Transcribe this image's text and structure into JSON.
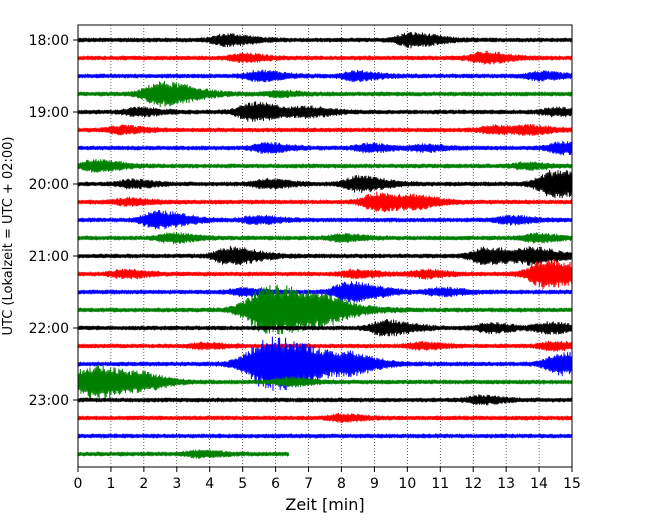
{
  "chart_data": {
    "type": "line",
    "title": "",
    "xlabel": "Zeit  [min]",
    "ylabel": "UTC (Lokalzeit = UTC + 02:00)",
    "xlim": [
      0,
      15
    ],
    "x_ticks": [
      "0",
      "1",
      "2",
      "3",
      "4",
      "5",
      "6",
      "7",
      "8",
      "9",
      "10",
      "11",
      "12",
      "13",
      "14",
      "15"
    ],
    "y_ticks": [
      "18:00",
      "19:00",
      "20:00",
      "21:00",
      "22:00",
      "23:00"
    ],
    "grid": "vertical dotted",
    "line_colors": [
      "#000000",
      "#ff0000",
      "#0000ff",
      "#008000"
    ],
    "traces": [
      {
        "start": "18:00",
        "color": "#000000",
        "end_min": 15,
        "events": [
          [
            4.5,
            0.45
          ],
          [
            10.1,
            0.55
          ]
        ]
      },
      {
        "start": "18:15",
        "color": "#ff0000",
        "end_min": 15,
        "events": [
          [
            5.0,
            0.3
          ],
          [
            12.3,
            0.45
          ]
        ]
      },
      {
        "start": "18:30",
        "color": "#0000ff",
        "end_min": 15,
        "events": [
          [
            5.5,
            0.4
          ],
          [
            8.4,
            0.35
          ],
          [
            14.0,
            0.3
          ]
        ]
      },
      {
        "start": "18:45",
        "color": "#008000",
        "end_min": 15,
        "events": [
          [
            2.5,
            1.0
          ],
          [
            6.1,
            0.2
          ]
        ]
      },
      {
        "start": "19:00",
        "color": "#000000",
        "end_min": 15,
        "events": [
          [
            1.8,
            0.3
          ],
          [
            5.3,
            0.75
          ],
          [
            7.0,
            0.35
          ],
          [
            14.5,
            0.3
          ]
        ]
      },
      {
        "start": "19:15",
        "color": "#ff0000",
        "end_min": 15,
        "events": [
          [
            1.3,
            0.3
          ],
          [
            12.6,
            0.3
          ],
          [
            13.7,
            0.3
          ]
        ]
      },
      {
        "start": "19:30",
        "color": "#0000ff",
        "end_min": 15,
        "events": [
          [
            5.7,
            0.35
          ],
          [
            8.8,
            0.3
          ],
          [
            10.5,
            0.25
          ],
          [
            14.7,
            0.45
          ]
        ]
      },
      {
        "start": "19:45",
        "color": "#008000",
        "end_min": 15,
        "events": [
          [
            0.5,
            0.45
          ],
          [
            13.6,
            0.25
          ]
        ]
      },
      {
        "start": "20:00",
        "color": "#000000",
        "end_min": 15,
        "events": [
          [
            1.6,
            0.3
          ],
          [
            5.7,
            0.35
          ],
          [
            8.5,
            0.6
          ],
          [
            14.5,
            1.2
          ]
        ]
      },
      {
        "start": "20:15",
        "color": "#ff0000",
        "end_min": 15,
        "events": [
          [
            1.5,
            0.25
          ],
          [
            9.1,
            0.75
          ],
          [
            10.3,
            0.35
          ]
        ]
      },
      {
        "start": "20:30",
        "color": "#0000ff",
        "end_min": 15,
        "events": [
          [
            2.4,
            0.7
          ],
          [
            5.4,
            0.3
          ],
          [
            13.1,
            0.3
          ]
        ]
      },
      {
        "start": "20:45",
        "color": "#008000",
        "end_min": 15,
        "events": [
          [
            2.8,
            0.35
          ],
          [
            8.0,
            0.25
          ],
          [
            13.9,
            0.3
          ]
        ]
      },
      {
        "start": "21:00",
        "color": "#000000",
        "end_min": 15,
        "events": [
          [
            4.6,
            0.7
          ],
          [
            12.4,
            0.7
          ],
          [
            13.8,
            0.6
          ]
        ]
      },
      {
        "start": "21:15",
        "color": "#ff0000",
        "end_min": 15,
        "events": [
          [
            1.4,
            0.3
          ],
          [
            8.4,
            0.3
          ],
          [
            10.5,
            0.3
          ],
          [
            14.2,
            1.2
          ]
        ]
      },
      {
        "start": "21:30",
        "color": "#0000ff",
        "end_min": 15,
        "events": [
          [
            5.0,
            0.25
          ],
          [
            8.2,
            0.8
          ],
          [
            11.0,
            0.3
          ]
        ]
      },
      {
        "start": "21:45",
        "color": "#008000",
        "end_min": 15,
        "events": [
          [
            5.8,
            2.2
          ],
          [
            7.4,
            0.35
          ]
        ]
      },
      {
        "start": "22:00",
        "color": "#000000",
        "end_min": 15,
        "events": [
          [
            9.3,
            0.6
          ],
          [
            12.5,
            0.35
          ],
          [
            14.3,
            0.4
          ]
        ]
      },
      {
        "start": "22:15",
        "color": "#ff0000",
        "end_min": 15,
        "events": [
          [
            3.8,
            0.2
          ],
          [
            10.4,
            0.25
          ],
          [
            14.4,
            0.3
          ]
        ]
      },
      {
        "start": "22:30",
        "color": "#0000ff",
        "end_min": 15,
        "events": [
          [
            5.8,
            2.3
          ],
          [
            8.3,
            0.45
          ],
          [
            14.7,
            0.9
          ]
        ]
      },
      {
        "start": "22:45",
        "color": "#008000",
        "end_min": 15,
        "events": [
          [
            0.4,
            1.4
          ],
          [
            2.0,
            0.35
          ],
          [
            6.4,
            0.3
          ]
        ]
      },
      {
        "start": "23:00",
        "color": "#000000",
        "end_min": 15,
        "events": [
          [
            12.2,
            0.3
          ]
        ]
      },
      {
        "start": "23:15",
        "color": "#ff0000",
        "end_min": 15,
        "events": [
          [
            8.0,
            0.25
          ]
        ]
      },
      {
        "start": "23:30",
        "color": "#0000ff",
        "end_min": 15,
        "events": []
      },
      {
        "start": "23:45",
        "color": "#008000",
        "end_min": 6.4,
        "events": [
          [
            3.7,
            0.25
          ]
        ]
      }
    ]
  }
}
